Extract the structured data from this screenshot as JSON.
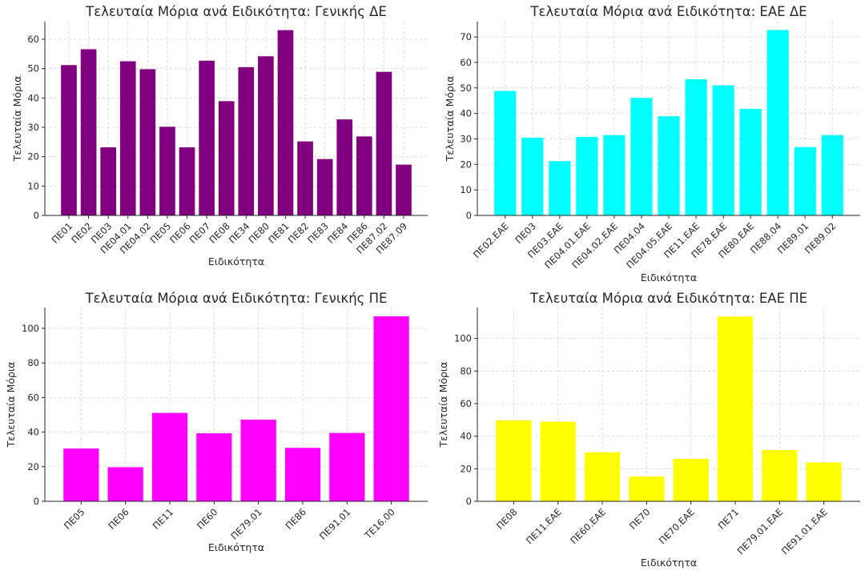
{
  "chart_data": [
    {
      "type": "bar",
      "title": "Τελευταία Μόρια ανά Ειδικότητα: Γενικής ΔΕ",
      "xlabel": "Ειδικότητα",
      "ylabel": "Τελευταία Μόρια",
      "ylim": [
        0,
        66
      ],
      "yticks": [
        0,
        10,
        20,
        30,
        40,
        50,
        60
      ],
      "color": "#800080",
      "grid": true,
      "categories": [
        "ΠΕ01",
        "ΠΕ02",
        "ΠΕ03",
        "ΠΕ04.01",
        "ΠΕ04.02",
        "ΠΕ05",
        "ΠΕ06",
        "ΠΕ07",
        "ΠΕ08",
        "ΠΕ34",
        "ΠΕ80",
        "ΠΕ81",
        "ΠΕ82",
        "ΠΕ83",
        "ΠΕ84",
        "ΠΕ86",
        "ΠΕ87.02",
        "ΠΕ87.09"
      ],
      "values": [
        51.2,
        56.6,
        23.2,
        52.5,
        49.8,
        30.2,
        23.2,
        52.7,
        38.9,
        50.5,
        54.2,
        63.1,
        25.2,
        19.2,
        32.7,
        26.9,
        48.9,
        17.3
      ]
    },
    {
      "type": "bar",
      "title": "Τελευταία Μόρια ανά Ειδικότητα: ΕΑΕ ΔΕ",
      "xlabel": "Ειδικότητα",
      "ylabel": "Τελευταία Μόρια",
      "ylim": [
        0,
        76
      ],
      "yticks": [
        0,
        10,
        20,
        30,
        40,
        50,
        60,
        70
      ],
      "color": "#00ffff",
      "grid": true,
      "categories": [
        "ΠΕ02.ΕΑΕ",
        "ΠΕ03",
        "ΠΕ03.ΕΑΕ",
        "ΠΕ04.01.ΕΑΕ",
        "ΠΕ04.02.ΕΑΕ",
        "ΠΕ04.04",
        "ΠΕ04.05.ΕΑΕ",
        "ΠΕ11.ΕΑΕ",
        "ΠΕ78.ΕΑΕ",
        "ΠΕ80.ΕΑΕ",
        "ΠΕ88.04",
        "ΠΕ89.01",
        "ΠΕ89.02"
      ],
      "values": [
        48.8,
        30.5,
        21.3,
        30.8,
        31.5,
        46.1,
        38.9,
        53.4,
        51.0,
        41.8,
        72.7,
        26.8,
        31.5
      ]
    },
    {
      "type": "bar",
      "title": "Τελευταία Μόρια ανά Ειδικότητα: Γενικής ΠΕ",
      "xlabel": "Ειδικότητα",
      "ylabel": "Τελευταία Μόρια",
      "ylim": [
        0,
        112
      ],
      "yticks": [
        0,
        20,
        40,
        60,
        80,
        100
      ],
      "color": "#ff00ff",
      "grid": true,
      "categories": [
        "ΠΕ05",
        "ΠΕ06",
        "ΠΕ11",
        "ΠΕ60",
        "ΠΕ79.01",
        "ΠΕ86",
        "ΠΕ91.01",
        "ΤΕ16.00"
      ],
      "values": [
        30.5,
        19.7,
        51.1,
        39.3,
        47.2,
        30.9,
        39.5,
        106.9
      ]
    },
    {
      "type": "bar",
      "title": "Τελευταία Μόρια ανά Ειδικότητα: ΕΑΕ ΠΕ",
      "xlabel": "Ειδικότητα",
      "ylabel": "Τελευταία Μόρια",
      "ylim": [
        0,
        119
      ],
      "yticks": [
        0,
        20,
        40,
        60,
        80,
        100
      ],
      "color": "#ffff00",
      "grid": true,
      "categories": [
        "ΠΕ08",
        "ΠΕ11.ΕΑΕ",
        "ΠΕ60.ΕΑΕ",
        "ΠΕ70",
        "ΠΕ70.ΕΑΕ",
        "ΠΕ71",
        "ΠΕ79.01.ΕΑΕ",
        "ΠΕ91.01.ΕΑΕ"
      ],
      "values": [
        49.7,
        48.9,
        30.1,
        15.2,
        26.1,
        113.5,
        31.5,
        23.9
      ]
    }
  ]
}
